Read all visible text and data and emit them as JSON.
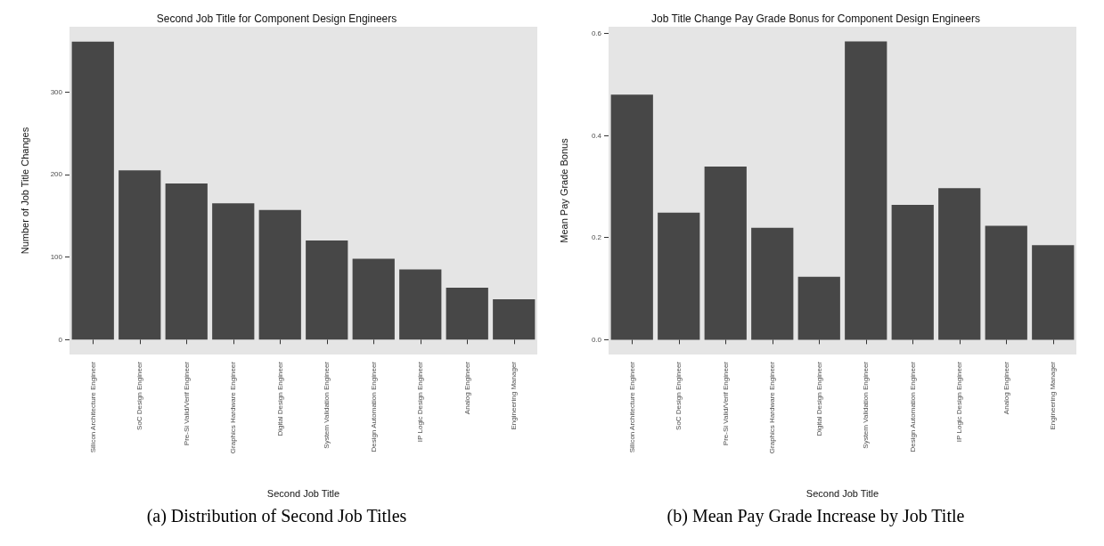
{
  "chart_data": [
    {
      "type": "bar",
      "title": "Second Job Title for Component Design Engineers",
      "xlabel": "Second Job Title",
      "ylabel": "Number of Job Title Changes",
      "categories": [
        "Silicon Architecture Engineer",
        "SoC Design Engineer",
        "Pre-Si Valid/Verif Engineer",
        "Graphics Hardware Engineer",
        "Digital Design Engineer",
        "System Validation Engineer",
        "Design Automation Engineer",
        "IP Logic Design Engineer",
        "Analog Engineer",
        "Engineering Manager"
      ],
      "values": [
        361,
        205,
        189,
        165,
        157,
        120,
        98,
        85,
        63,
        49
      ],
      "color": "#474747",
      "ylim": [
        -18,
        379
      ],
      "yticks": [
        0,
        100,
        200,
        300
      ],
      "grid": false,
      "annotations": [
        "(a) Distribution of Second Job Titles"
      ]
    },
    {
      "type": "bar",
      "title": "Job Title Change Pay Grade Bonus for Component Design Engineers",
      "xlabel": "Second Job Title",
      "ylabel": "Mean Pay Grade Bonus",
      "categories": [
        "Silicon Architecture Engineer",
        "SoC Design Engineer",
        "Pre-Si Valid/Verif Engineer",
        "Graphics Hardware Engineer",
        "Digital Design Engineer",
        "System Validation Engineer",
        "Design Automation Engineer",
        "IP Logic Design Engineer",
        "Analog Engineer",
        "Engineering Manager"
      ],
      "values": [
        0.48,
        0.249,
        0.339,
        0.219,
        0.123,
        0.584,
        0.264,
        0.297,
        0.223,
        0.185
      ],
      "color": "#474747",
      "ylim": [
        -0.029,
        0.613
      ],
      "yticks": [
        {
          "value": 0,
          "label": "0.0"
        },
        0.2,
        0.4,
        0.6
      ],
      "grid": false,
      "annotations": [
        "(b) Mean Pay Grade Increase by Job Title"
      ]
    }
  ]
}
